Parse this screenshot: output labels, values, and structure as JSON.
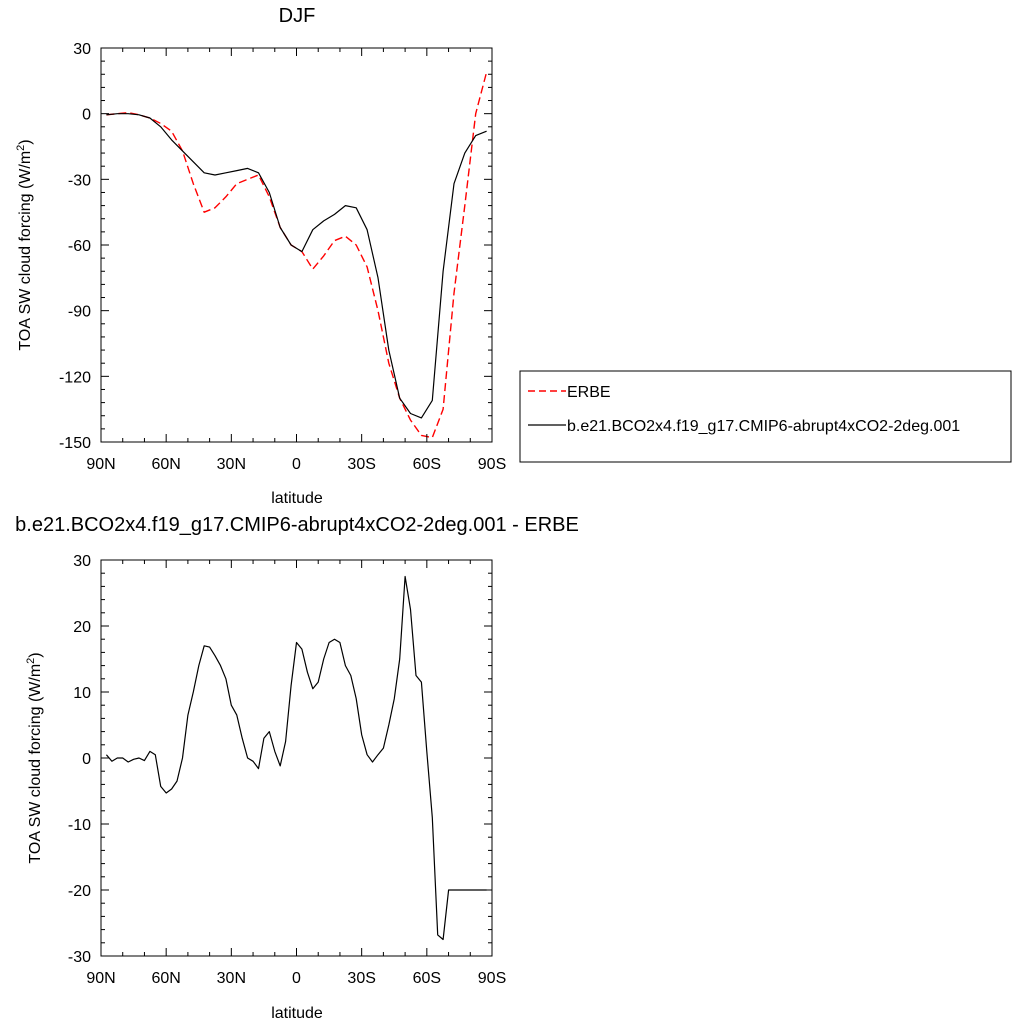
{
  "chart_data": [
    {
      "type": "line",
      "title": "DJF",
      "xlabel": "latitude",
      "ylabel": "TOA SW cloud forcing (W/m",
      "ylabel_sup": "2",
      "ylabel_tail": ")",
      "xlim": [
        -90,
        90
      ],
      "ylim": [
        -150,
        30
      ],
      "x_ticks": [
        -90,
        -60,
        -30,
        0,
        30,
        60,
        90
      ],
      "x_tick_labels": [
        "90N",
        "60N",
        "30N",
        "0",
        "30S",
        "60S",
        "90S"
      ],
      "y_ticks": [
        30,
        0,
        -30,
        -60,
        -90,
        -120,
        -150
      ],
      "y_tick_labels": [
        "30",
        "0",
        "-30",
        "-60",
        "-90",
        "-120",
        "-150"
      ],
      "legend": {
        "position": "right",
        "entries": [
          "ERBE",
          "b.e21.BCO2x4.f19_g17.CMIP6-abrupt4xCO2-2deg.001"
        ]
      },
      "series": [
        {
          "name": "ERBE",
          "color": "#ff0000",
          "dash": "dashed",
          "x": [
            -87.5,
            -82.5,
            -77.5,
            -72.5,
            -67.5,
            -62.5,
            -57.5,
            -52.5,
            -47.5,
            -42.5,
            -37.5,
            -32.5,
            -27.5,
            -22.5,
            -17.5,
            -12.5,
            -7.5,
            -2.5,
            2.5,
            7.5,
            12.5,
            17.5,
            22.5,
            27.5,
            32.5,
            37.5,
            42.5,
            47.5,
            52.5,
            57.5,
            62.5,
            67.5,
            72.5,
            77.5,
            82.5,
            87.5
          ],
          "y": [
            -0.5,
            0,
            0.5,
            -0.5,
            -2,
            -4.5,
            -8,
            -17,
            -32,
            -45,
            -43,
            -38,
            -32,
            -30,
            -28,
            -38,
            -52,
            -60,
            -63,
            -71,
            -65,
            -58,
            -56,
            -60,
            -70,
            -90,
            -114,
            -130,
            -140,
            -147,
            -148,
            -135,
            -82,
            -42,
            0,
            19
          ]
        },
        {
          "name": "b.e21.BCO2x4.f19_g17.CMIP6-abrupt4xCO2-2deg.001",
          "color": "#000000",
          "dash": "solid",
          "x": [
            -87.5,
            -82.5,
            -77.5,
            -72.5,
            -67.5,
            -62.5,
            -57.5,
            -52.5,
            -47.5,
            -42.5,
            -37.5,
            -32.5,
            -27.5,
            -22.5,
            -17.5,
            -12.5,
            -7.5,
            -2.5,
            2.5,
            7.5,
            12.5,
            17.5,
            22.5,
            27.5,
            32.5,
            37.5,
            42.5,
            47.5,
            52.5,
            57.5,
            62.5,
            67.5,
            72.5,
            77.5,
            82.5,
            87.5
          ],
          "y": [
            -0.5,
            0,
            0,
            -0.5,
            -2,
            -6,
            -12,
            -17,
            -22,
            -27,
            -28,
            -27,
            -26,
            -25,
            -27,
            -36,
            -52,
            -60,
            -63,
            -53,
            -49,
            -46,
            -42,
            -43,
            -53,
            -75,
            -108,
            -130,
            -137,
            -139,
            -131,
            -72,
            -32,
            -18,
            -10,
            -8
          ]
        }
      ]
    },
    {
      "type": "line",
      "title": "b.e21.BCO2x4.f19_g17.CMIP6-abrupt4xCO2-2deg.001 - ERBE",
      "xlabel": "latitude",
      "ylabel": "TOA SW cloud forcing (W/m",
      "ylabel_sup": "2",
      "ylabel_tail": ")",
      "xlim": [
        -90,
        90
      ],
      "ylim": [
        -30,
        30
      ],
      "x_ticks": [
        -90,
        -60,
        -30,
        0,
        30,
        60,
        90
      ],
      "x_tick_labels": [
        "90N",
        "60N",
        "30N",
        "0",
        "30S",
        "60S",
        "90S"
      ],
      "y_ticks": [
        30,
        20,
        10,
        0,
        -10,
        -20,
        -30
      ],
      "y_tick_labels": [
        "30",
        "20",
        "10",
        "0",
        "-10",
        "-20",
        "-30"
      ],
      "series": [
        {
          "color": "#000000",
          "dash": "solid",
          "x": [
            -87.5,
            -85,
            -82.5,
            -80,
            -77.5,
            -75,
            -72.5,
            -70,
            -67.5,
            -65,
            -62.5,
            -60,
            -57.5,
            -55,
            -52.5,
            -50,
            -47.5,
            -45,
            -42.5,
            -40,
            -37.5,
            -35,
            -32.5,
            -30,
            -27.5,
            -25,
            -22.5,
            -20,
            -17.5,
            -15,
            -12.5,
            -10,
            -7.5,
            -5,
            -2.5,
            0,
            2.5,
            5,
            7.5,
            10,
            12.5,
            15,
            17.5,
            20,
            22.5,
            25,
            27.5,
            30,
            32.5,
            35,
            37.5,
            40,
            42.5,
            45,
            47.5,
            50,
            52.5,
            55,
            57.5,
            60,
            62.5,
            65,
            67.5,
            70,
            72.5,
            75,
            77.5,
            80,
            82.5,
            85,
            87.5
          ],
          "y": [
            0.5,
            -0.5,
            0,
            0,
            -0.6,
            -0.2,
            0,
            -0.4,
            1,
            0.5,
            -4.3,
            -5.3,
            -4.7,
            -3.5,
            0,
            6.5,
            10,
            14,
            17,
            16.8,
            15.5,
            14,
            12,
            8,
            6.5,
            3,
            0,
            -0.5,
            -1.6,
            3,
            4,
            1,
            -1.2,
            2.5,
            11,
            17.5,
            16.5,
            13,
            10.5,
            11.5,
            15,
            17.5,
            18,
            17.5,
            14,
            12.5,
            9,
            3.5,
            0.5,
            -0.6,
            0.5,
            1.5,
            5,
            9,
            15,
            27.5,
            22.5,
            12.5,
            11.5,
            1,
            -9,
            -26.8,
            -27.5,
            -20,
            -20,
            -20,
            -20,
            -20,
            -20,
            -20,
            -20
          ]
        }
      ]
    }
  ]
}
